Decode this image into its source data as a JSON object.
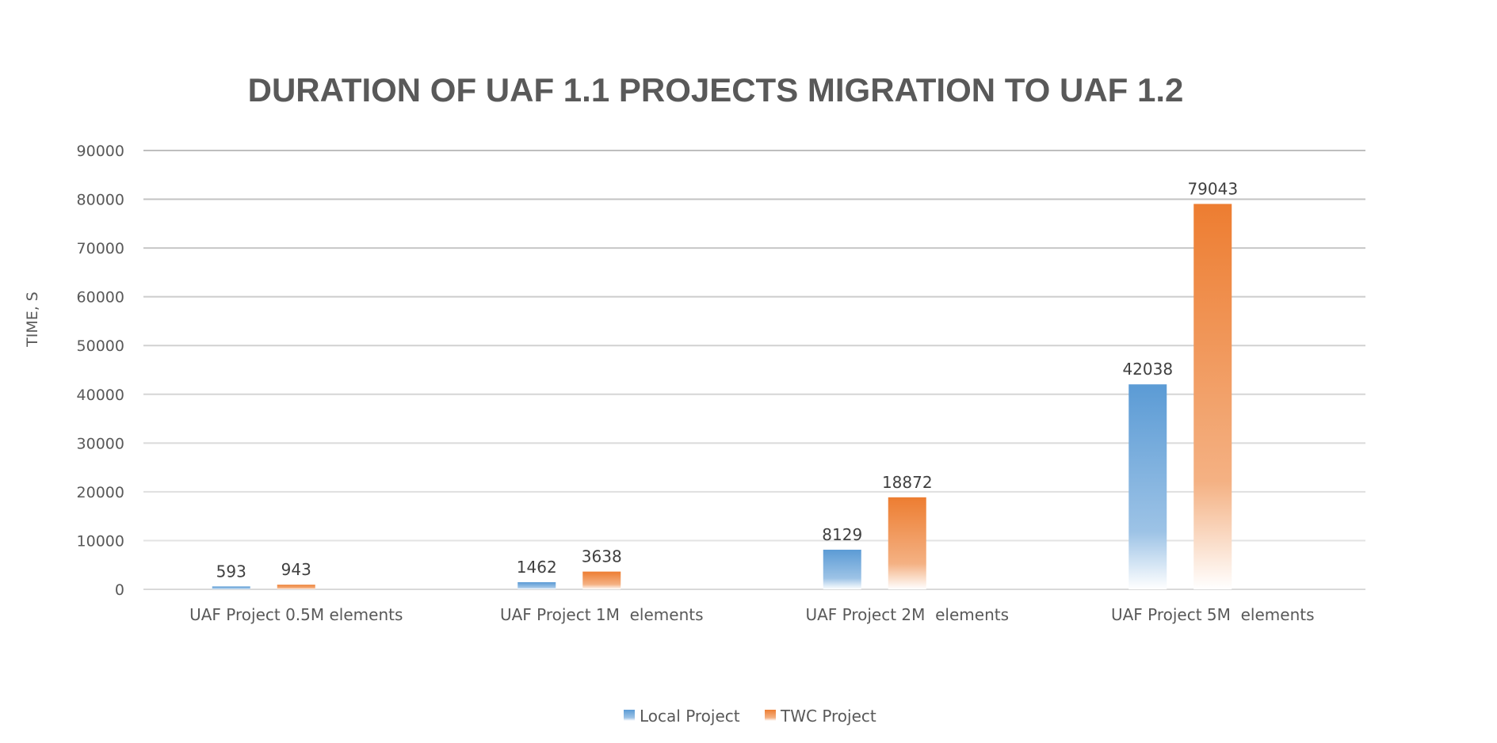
{
  "chart_data": {
    "type": "bar",
    "title": "DURATION OF UAF 1.1 PROJECTS MIGRATION TO UAF 1.2",
    "xlabel": "",
    "ylabel": "TIME, S",
    "categories": [
      "UAF Project 0.5M elements",
      "UAF Project 1M  elements",
      "UAF Project 2M  elements",
      "UAF Project 5M  elements"
    ],
    "series": [
      {
        "name": "Local Project",
        "color": "#5B9BD5",
        "values": [
          593,
          1462,
          8129,
          42038
        ]
      },
      {
        "name": "TWC Project",
        "color": "#ED7D31",
        "values": [
          943,
          3638,
          18872,
          79043
        ]
      }
    ],
    "ylim": [
      0,
      90000
    ],
    "yticks": [
      0,
      10000,
      20000,
      30000,
      40000,
      50000,
      60000,
      70000,
      80000,
      90000
    ],
    "grid": true,
    "data_labels": true,
    "legend_position": "bottom"
  }
}
